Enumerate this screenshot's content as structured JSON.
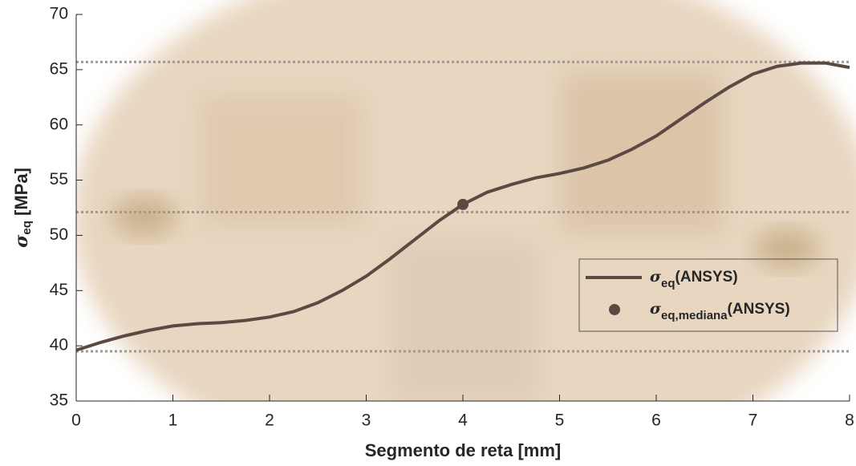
{
  "chart_data": {
    "type": "line",
    "xlabel": "Segmento de reta [mm]",
    "ylabel": [
      "σ",
      "eq",
      " [MPa]"
    ],
    "xlim": [
      0,
      8
    ],
    "xticks": [
      0,
      1,
      2,
      3,
      4,
      5,
      6,
      7,
      8
    ],
    "ylim": [
      35,
      70
    ],
    "yticks": [
      35,
      40,
      45,
      50,
      55,
      60,
      65,
      70
    ],
    "hlines": [
      65.7,
      52.1,
      39.5
    ],
    "hline_color": "#9a9a9a",
    "series": [
      {
        "type": "line",
        "name": [
          "σ",
          "eq",
          "(ANSYS)"
        ],
        "color": "#5b4a42",
        "x": [
          0,
          0.25,
          0.5,
          0.75,
          1,
          1.25,
          1.5,
          1.75,
          2,
          2.25,
          2.5,
          2.75,
          3,
          3.25,
          3.5,
          3.75,
          4,
          4.25,
          4.5,
          4.75,
          5,
          5.25,
          5.5,
          5.75,
          6,
          6.25,
          6.5,
          6.75,
          7,
          7.25,
          7.5,
          7.75,
          8
        ],
        "values": [
          39.6,
          40.3,
          40.9,
          41.4,
          41.8,
          42.0,
          42.1,
          42.3,
          42.6,
          43.1,
          43.9,
          45.0,
          46.3,
          47.9,
          49.6,
          51.3,
          52.8,
          53.9,
          54.6,
          55.2,
          55.6,
          56.1,
          56.8,
          57.8,
          59.0,
          60.5,
          62.0,
          63.4,
          64.6,
          65.3,
          65.6,
          65.6,
          65.2
        ]
      },
      {
        "type": "scatter",
        "name": [
          "σ",
          "eq,mediana",
          "(ANSYS)"
        ],
        "color": "#5b4a42",
        "x": [
          4
        ],
        "values": [
          52.8
        ]
      }
    ]
  }
}
